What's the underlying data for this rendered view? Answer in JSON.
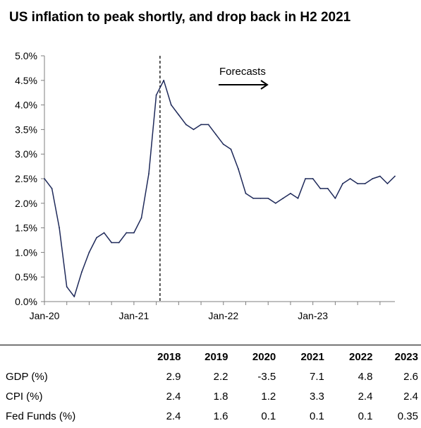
{
  "title": "US inflation to peak shortly, and drop back in H2 2021",
  "chart_data": {
    "type": "line",
    "ylim": [
      0,
      5
    ],
    "y_tick_labels": [
      "0.0%",
      "0.5%",
      "1.0%",
      "1.5%",
      "2.0%",
      "2.5%",
      "3.0%",
      "3.5%",
      "4.0%",
      "4.5%",
      "5.0%"
    ],
    "x_tick_labels": [
      {
        "label": "Jan-20",
        "x": 0
      },
      {
        "label": "Jan-21",
        "x": 12
      },
      {
        "label": "Jan-22",
        "x": 24
      },
      {
        "label": "Jan-23",
        "x": 36
      }
    ],
    "x_range": [
      0,
      47
    ],
    "forecast_start_x": 15.5,
    "annotation": "Forecasts",
    "grid": false,
    "line_color": "#1f2a5a",
    "series": [
      {
        "x": [
          0,
          1,
          2,
          3,
          4,
          5,
          6,
          7,
          8,
          9,
          10,
          11,
          12,
          13,
          14,
          15,
          16,
          17,
          18,
          19,
          20,
          21,
          22,
          23,
          24,
          25,
          26,
          27,
          28,
          29,
          30,
          31,
          32,
          33,
          34,
          35,
          36,
          37,
          38,
          39,
          40,
          41,
          42,
          43,
          44,
          45,
          46,
          47
        ],
        "values": [
          2.5,
          2.3,
          1.5,
          0.3,
          0.1,
          0.6,
          1.0,
          1.3,
          1.4,
          1.2,
          1.2,
          1.4,
          1.4,
          1.7,
          2.6,
          4.2,
          4.5,
          4.0,
          3.8,
          3.6,
          3.5,
          3.6,
          3.6,
          3.4,
          3.2,
          3.1,
          2.7,
          2.2,
          2.1,
          2.1,
          2.1,
          2.0,
          2.1,
          2.2,
          2.1,
          2.5,
          2.5,
          2.3,
          2.3,
          2.1,
          2.4,
          2.5,
          2.4,
          2.4,
          2.5,
          2.55,
          2.4,
          2.55
        ]
      }
    ]
  },
  "table": {
    "columns": [
      "2018",
      "2019",
      "2020",
      "2021",
      "2022",
      "2023"
    ],
    "rows": [
      {
        "label": "GDP (%)",
        "values": [
          "2.9",
          "2.2",
          "-3.5",
          "7.1",
          "4.8",
          "2.6"
        ]
      },
      {
        "label": "CPI (%)",
        "values": [
          "2.4",
          "1.8",
          "1.2",
          "3.3",
          "2.4",
          "2.4"
        ]
      },
      {
        "label": "Fed Funds (%)",
        "values": [
          "2.4",
          "1.6",
          "0.1",
          "0.1",
          "0.1",
          "0.35"
        ]
      }
    ]
  }
}
